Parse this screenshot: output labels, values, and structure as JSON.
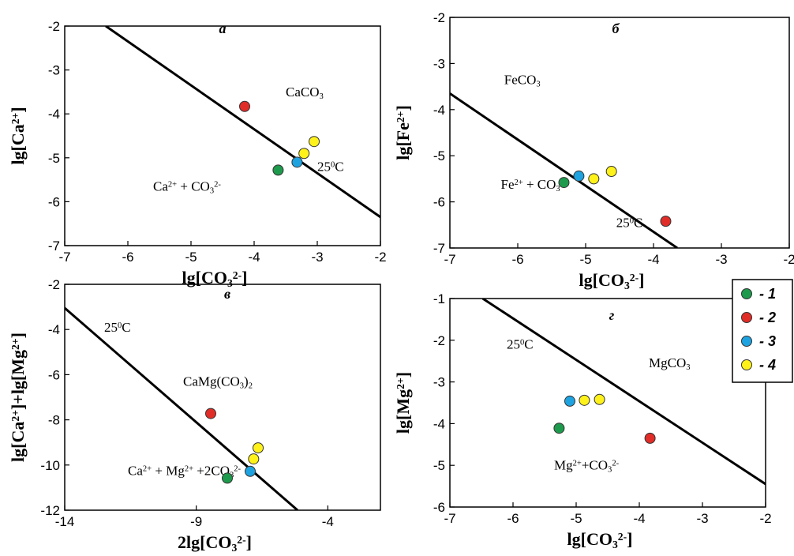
{
  "colors": {
    "1": "#1e9a4c",
    "2": "#e02d27",
    "3": "#1ea3e0",
    "4": "#fff21a"
  },
  "legend": {
    "items": [
      {
        "marker": "1",
        "label": "- 1"
      },
      {
        "marker": "2",
        "label": "- 2"
      },
      {
        "marker": "3",
        "label": "- 3"
      },
      {
        "marker": "4",
        "label": "- 4"
      }
    ]
  },
  "chart_data": [
    {
      "type": "scatter",
      "title": "а",
      "xlabel": "lg[CO₃²⁻]",
      "ylabel": "lg[Ca²⁺]",
      "xlim": [
        -7,
        -2
      ],
      "ylim": [
        -7,
        -2
      ],
      "x_ticks": [
        "-7",
        "-6",
        "-5",
        "-4",
        "-3",
        "-2"
      ],
      "y_ticks": [
        "-7",
        "-6",
        "-5",
        "-4",
        "-3",
        "-2"
      ],
      "line": {
        "label": "25⁰C",
        "points": [
          [
            -6.35,
            -2.0
          ],
          [
            -2.0,
            -6.35
          ]
        ]
      },
      "annotations": [
        {
          "text": "CaCO₃",
          "x": -3.5,
          "y": -3.6
        },
        {
          "text": "Ca²⁺ + CO₃²⁻",
          "x": -5.6,
          "y": -5.75
        }
      ],
      "series": [
        {
          "marker": "1",
          "points": [
            [
              -3.62,
              -5.28
            ]
          ]
        },
        {
          "marker": "2",
          "points": [
            [
              -4.15,
              -3.83
            ]
          ]
        },
        {
          "marker": "3",
          "points": [
            [
              -3.32,
              -5.1
            ]
          ]
        },
        {
          "marker": "4",
          "points": [
            [
              -3.21,
              -4.9
            ],
            [
              -3.05,
              -4.63
            ]
          ]
        }
      ]
    },
    {
      "type": "scatter",
      "title": "б",
      "xlabel": "lg[CO₃²⁻]",
      "ylabel": "lg[Fe²⁺]",
      "xlim": [
        -7,
        -2
      ],
      "ylim": [
        -7,
        -2
      ],
      "x_ticks": [
        "-7",
        "-6",
        "-5",
        "-4",
        "-3",
        "-2"
      ],
      "y_ticks": [
        "-7",
        "-6",
        "-5",
        "-4",
        "-3",
        "-2"
      ],
      "line": {
        "label": "25⁰C",
        "points": [
          [
            -7.0,
            -3.65
          ],
          [
            -3.65,
            -7.0
          ]
        ]
      },
      "annotations": [
        {
          "text": "FeCO₃",
          "x": -6.2,
          "y": -3.45
        },
        {
          "text": "Fe²⁺ + CO₃²⁻",
          "x": -6.25,
          "y": -5.72
        }
      ],
      "series": [
        {
          "marker": "1",
          "points": [
            [
              -5.32,
              -5.58
            ]
          ]
        },
        {
          "marker": "2",
          "points": [
            [
              -3.82,
              -6.42
            ]
          ]
        },
        {
          "marker": "3",
          "points": [
            [
              -5.1,
              -5.44
            ]
          ]
        },
        {
          "marker": "4",
          "points": [
            [
              -4.88,
              -5.5
            ],
            [
              -4.62,
              -5.34
            ]
          ]
        }
      ]
    },
    {
      "type": "scatter",
      "title": "в",
      "xlabel": "2lg[CO₃²⁻]",
      "ylabel": "lg[Ca²⁺]+lg[Mg²⁺]",
      "xlim": [
        -14,
        -2
      ],
      "ylim": [
        -12,
        -2
      ],
      "x_ticks": [
        "-14",
        "-9",
        "-4"
      ],
      "y_ticks": [
        "-12",
        "-10",
        "-8",
        "-6",
        "-4",
        "-2"
      ],
      "line": {
        "label": "25⁰C",
        "points": [
          [
            -14.0,
            -3.05
          ],
          [
            -5.15,
            -12.0
          ]
        ]
      },
      "annotations": [
        {
          "text": "CaMg(CO₃)₂",
          "x": -9.5,
          "y": -6.5
        },
        {
          "text": "Ca²⁺ + Mg²⁺ +2CO₃²⁻",
          "x": -11.6,
          "y": -10.45
        }
      ],
      "series": [
        {
          "marker": "1",
          "points": [
            [
              -7.82,
              -10.58
            ]
          ]
        },
        {
          "marker": "2",
          "points": [
            [
              -8.45,
              -7.72
            ]
          ]
        },
        {
          "marker": "3",
          "points": [
            [
              -6.95,
              -10.28
            ]
          ]
        },
        {
          "marker": "4",
          "points": [
            [
              -6.82,
              -9.73
            ],
            [
              -6.65,
              -9.24
            ]
          ]
        }
      ]
    },
    {
      "type": "scatter",
      "title": "г",
      "xlabel": "lg[CO₃²⁻]",
      "ylabel": "lg[Mg²⁺]",
      "xlim": [
        -7,
        -2
      ],
      "ylim": [
        -6,
        -1
      ],
      "x_ticks": [
        "-7",
        "-6",
        "-5",
        "-4",
        "-3",
        "-2"
      ],
      "y_ticks": [
        "-6",
        "-5",
        "-4",
        "-3",
        "-2",
        "-1"
      ],
      "line": {
        "label": "25⁰C",
        "points": [
          [
            -6.48,
            -1.0
          ],
          [
            -2.0,
            -5.45
          ]
        ]
      },
      "annotations": [
        {
          "text": "MgCO₃",
          "x": -3.85,
          "y": -2.65
        },
        {
          "text": "Mg²⁺+CO₃²⁻",
          "x": -5.35,
          "y": -5.1
        }
      ],
      "series": [
        {
          "marker": "1",
          "points": [
            [
              -5.27,
              -4.11
            ]
          ]
        },
        {
          "marker": "2",
          "points": [
            [
              -3.83,
              -4.35
            ]
          ]
        },
        {
          "marker": "3",
          "points": [
            [
              -5.1,
              -3.46
            ]
          ]
        },
        {
          "marker": "4",
          "points": [
            [
              -4.87,
              -3.44
            ],
            [
              -4.63,
              -3.42
            ]
          ]
        }
      ]
    }
  ]
}
